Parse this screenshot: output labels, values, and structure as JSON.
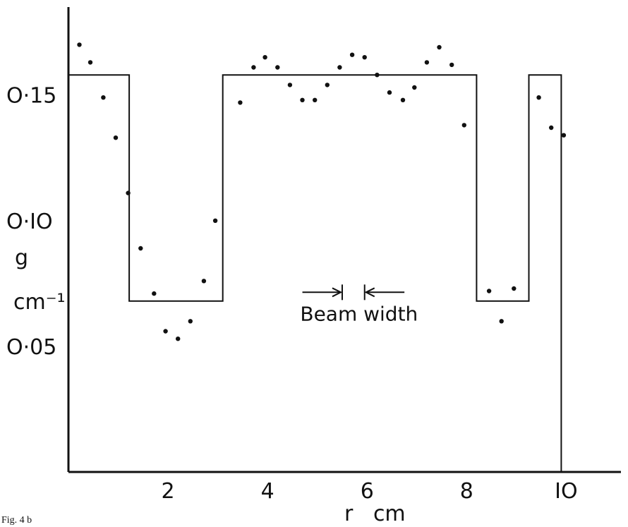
{
  "caption": "Fig. 4 b",
  "chart_data": {
    "type": "scatter",
    "xlabel": "r   cm",
    "ylabel": "g",
    "ylabel_unit": "cm⁻¹",
    "xlim": [
      0,
      11.1
    ],
    "ylim": [
      0,
      0.185
    ],
    "x_ticks": [
      {
        "value": 2,
        "label": "2"
      },
      {
        "value": 4,
        "label": "4"
      },
      {
        "value": 6,
        "label": "6"
      },
      {
        "value": 8,
        "label": "8"
      },
      {
        "value": 10,
        "label": "IO"
      }
    ],
    "y_ticks": [
      {
        "value": 0.15,
        "label": "O·15"
      },
      {
        "value": 0.1,
        "label": "O·IO"
      },
      {
        "value": 0.05,
        "label": "O·05"
      }
    ],
    "points": [
      [
        0.22,
        0.17
      ],
      [
        0.44,
        0.163
      ],
      [
        0.7,
        0.149
      ],
      [
        0.95,
        0.133
      ],
      [
        1.2,
        0.111
      ],
      [
        1.45,
        0.089
      ],
      [
        1.72,
        0.071
      ],
      [
        1.95,
        0.056
      ],
      [
        2.2,
        0.053
      ],
      [
        2.45,
        0.06
      ],
      [
        2.72,
        0.076
      ],
      [
        2.95,
        0.1
      ],
      [
        3.45,
        0.147
      ],
      [
        3.72,
        0.161
      ],
      [
        3.95,
        0.165
      ],
      [
        4.2,
        0.161
      ],
      [
        4.45,
        0.154
      ],
      [
        4.7,
        0.148
      ],
      [
        4.95,
        0.148
      ],
      [
        5.2,
        0.154
      ],
      [
        5.45,
        0.161
      ],
      [
        5.7,
        0.166
      ],
      [
        5.95,
        0.165
      ],
      [
        6.2,
        0.158
      ],
      [
        6.45,
        0.151
      ],
      [
        6.72,
        0.148
      ],
      [
        6.95,
        0.153
      ],
      [
        7.2,
        0.163
      ],
      [
        7.45,
        0.169
      ],
      [
        7.7,
        0.162
      ],
      [
        7.95,
        0.138
      ],
      [
        8.45,
        0.072
      ],
      [
        8.7,
        0.06
      ],
      [
        8.95,
        0.073
      ],
      [
        9.45,
        0.149
      ],
      [
        9.7,
        0.137
      ],
      [
        9.95,
        0.134
      ]
    ],
    "step_line": [
      [
        0,
        0.158
      ],
      [
        1.22,
        0.158
      ],
      [
        1.22,
        0.068
      ],
      [
        3.1,
        0.068
      ],
      [
        3.1,
        0.158
      ],
      [
        8.2,
        0.158
      ],
      [
        8.2,
        0.068
      ],
      [
        9.25,
        0.068
      ],
      [
        9.25,
        0.158
      ],
      [
        9.9,
        0.158
      ],
      [
        9.9,
        0.0
      ]
    ],
    "annotation": {
      "text": "Beam width",
      "left_arrow_from": 4.7,
      "left_bar": 5.5,
      "right_bar": 5.95,
      "right_arrow_to": 6.75,
      "arrow_y": 0.0715
    },
    "grid": false,
    "legend": "none"
  }
}
